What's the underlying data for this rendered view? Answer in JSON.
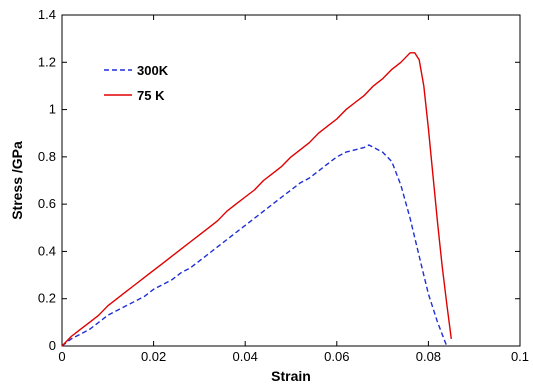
{
  "chart_data": {
    "type": "line",
    "title": "",
    "xlabel": "Strain",
    "ylabel": "Stress /GPa",
    "xlim": [
      0,
      0.1
    ],
    "ylim": [
      0,
      1.4
    ],
    "xticks": [
      0,
      0.02,
      0.04,
      0.06,
      0.08,
      0.1
    ],
    "xtick_labels": [
      "0",
      "0.02",
      "0.04",
      "0.06",
      "0.08",
      "0.1"
    ],
    "yticks": [
      0,
      0.2,
      0.4,
      0.6,
      0.8,
      1.0,
      1.2,
      1.4
    ],
    "ytick_labels": [
      "0",
      "0.2",
      "0.4",
      "0.6",
      "0.8",
      "1",
      "1.2",
      "1.4"
    ],
    "grid": false,
    "legend_position": "top-left",
    "series": [
      {
        "name": "300K",
        "color": "#1f2fd6",
        "dash": "dashed",
        "points": [
          [
            0.0,
            0.0
          ],
          [
            0.002,
            0.03
          ],
          [
            0.004,
            0.05
          ],
          [
            0.006,
            0.07
          ],
          [
            0.008,
            0.1
          ],
          [
            0.01,
            0.13
          ],
          [
            0.012,
            0.15
          ],
          [
            0.014,
            0.17
          ],
          [
            0.016,
            0.19
          ],
          [
            0.018,
            0.21
          ],
          [
            0.02,
            0.24
          ],
          [
            0.022,
            0.26
          ],
          [
            0.024,
            0.28
          ],
          [
            0.026,
            0.31
          ],
          [
            0.028,
            0.33
          ],
          [
            0.03,
            0.36
          ],
          [
            0.032,
            0.39
          ],
          [
            0.034,
            0.42
          ],
          [
            0.036,
            0.45
          ],
          [
            0.038,
            0.48
          ],
          [
            0.04,
            0.51
          ],
          [
            0.042,
            0.54
          ],
          [
            0.044,
            0.57
          ],
          [
            0.046,
            0.6
          ],
          [
            0.048,
            0.63
          ],
          [
            0.05,
            0.66
          ],
          [
            0.052,
            0.69
          ],
          [
            0.054,
            0.71
          ],
          [
            0.056,
            0.74
          ],
          [
            0.058,
            0.77
          ],
          [
            0.06,
            0.8
          ],
          [
            0.062,
            0.82
          ],
          [
            0.064,
            0.83
          ],
          [
            0.066,
            0.84
          ],
          [
            0.067,
            0.85
          ],
          [
            0.068,
            0.84
          ],
          [
            0.07,
            0.82
          ],
          [
            0.072,
            0.78
          ],
          [
            0.074,
            0.68
          ],
          [
            0.076,
            0.54
          ],
          [
            0.078,
            0.38
          ],
          [
            0.08,
            0.22
          ],
          [
            0.082,
            0.1
          ],
          [
            0.084,
            0.0
          ]
        ]
      },
      {
        "name": "75 K",
        "color": "#e00000",
        "dash": "solid",
        "points": [
          [
            0.0,
            0.0
          ],
          [
            0.002,
            0.04
          ],
          [
            0.004,
            0.07
          ],
          [
            0.006,
            0.1
          ],
          [
            0.008,
            0.13
          ],
          [
            0.01,
            0.17
          ],
          [
            0.012,
            0.2
          ],
          [
            0.014,
            0.23
          ],
          [
            0.016,
            0.26
          ],
          [
            0.018,
            0.29
          ],
          [
            0.02,
            0.32
          ],
          [
            0.022,
            0.35
          ],
          [
            0.024,
            0.38
          ],
          [
            0.026,
            0.41
          ],
          [
            0.028,
            0.44
          ],
          [
            0.03,
            0.47
          ],
          [
            0.032,
            0.5
          ],
          [
            0.034,
            0.53
          ],
          [
            0.036,
            0.57
          ],
          [
            0.038,
            0.6
          ],
          [
            0.04,
            0.63
          ],
          [
            0.042,
            0.66
          ],
          [
            0.044,
            0.7
          ],
          [
            0.046,
            0.73
          ],
          [
            0.048,
            0.76
          ],
          [
            0.05,
            0.8
          ],
          [
            0.052,
            0.83
          ],
          [
            0.054,
            0.86
          ],
          [
            0.056,
            0.9
          ],
          [
            0.058,
            0.93
          ],
          [
            0.06,
            0.96
          ],
          [
            0.062,
            1.0
          ],
          [
            0.064,
            1.03
          ],
          [
            0.066,
            1.06
          ],
          [
            0.068,
            1.1
          ],
          [
            0.07,
            1.13
          ],
          [
            0.072,
            1.17
          ],
          [
            0.074,
            1.2
          ],
          [
            0.076,
            1.24
          ],
          [
            0.077,
            1.24
          ],
          [
            0.078,
            1.21
          ],
          [
            0.079,
            1.1
          ],
          [
            0.08,
            0.92
          ],
          [
            0.081,
            0.72
          ],
          [
            0.082,
            0.52
          ],
          [
            0.083,
            0.34
          ],
          [
            0.084,
            0.18
          ],
          [
            0.085,
            0.03
          ]
        ]
      }
    ]
  }
}
